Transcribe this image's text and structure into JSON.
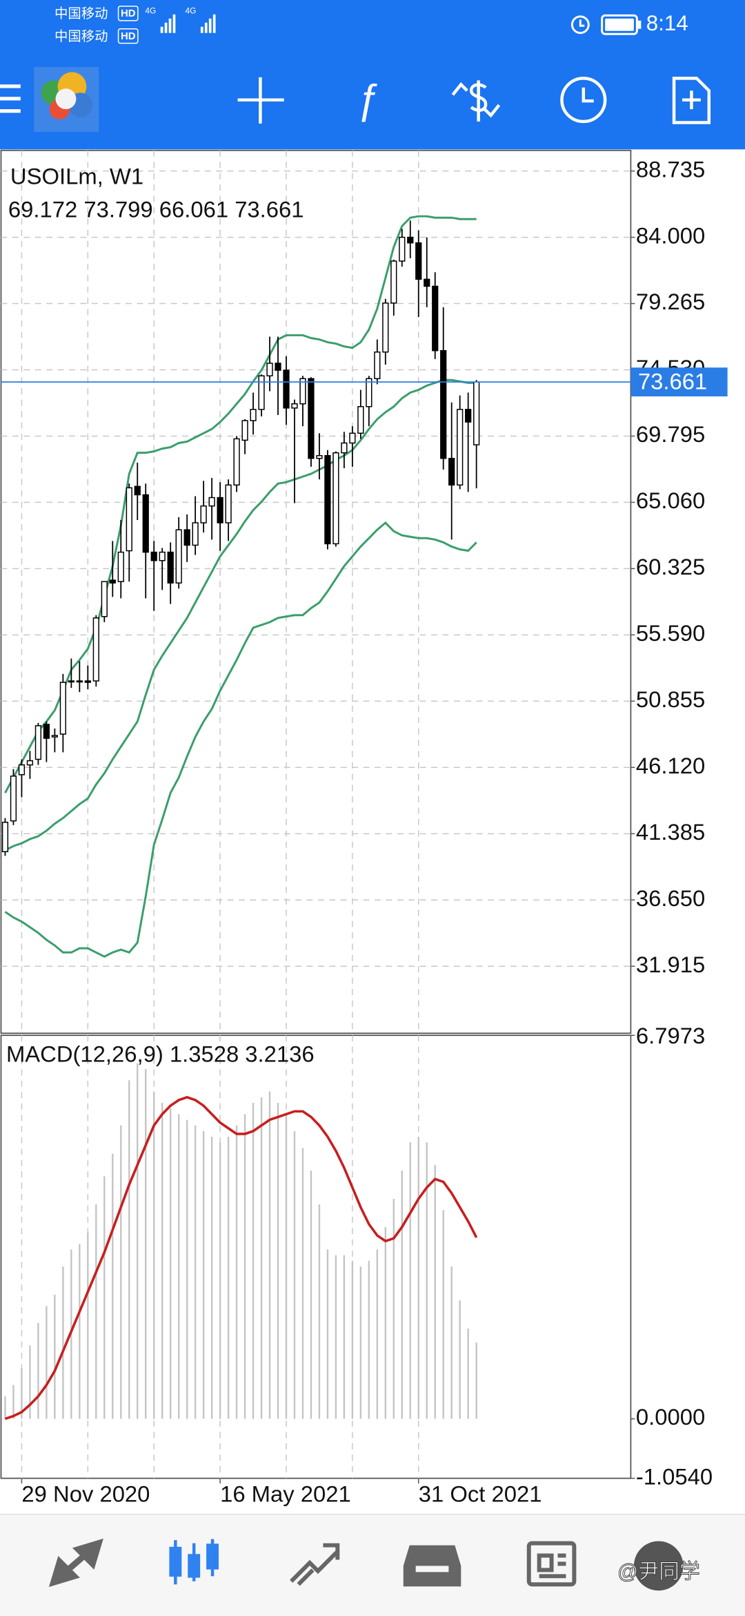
{
  "status_bar": {
    "sims": [
      {
        "carrier": "中国移动",
        "hd": "HD",
        "network": "4G"
      },
      {
        "carrier": "中国移动",
        "hd": "HD",
        "network": "4G"
      }
    ],
    "time": "8:14"
  },
  "chart": {
    "type": "candlestick",
    "symbol": "USOILm, W1",
    "ohlc_text": "69.172 73.799 66.061 73.661",
    "categories": [
      null,
      null,
      "29 Nov 2020",
      null,
      null,
      null,
      null,
      null,
      null,
      null,
      null,
      null,
      null,
      null,
      null,
      null,
      null,
      null,
      null,
      null,
      null,
      null,
      null,
      null,
      null,
      null,
      "16 May 2021",
      null,
      null,
      null,
      null,
      null,
      null,
      null,
      null,
      null,
      null,
      null,
      null,
      null,
      null,
      null,
      null,
      null,
      null,
      null,
      null,
      null,
      null,
      null,
      "31 Oct 2021",
      null,
      null,
      null,
      null,
      null,
      null,
      null
    ],
    "ylim": [
      27.125,
      90.207
    ],
    "yticks": [
      88.735,
      {
        "value": 84,
        "label": "84.000"
      },
      79.265,
      {
        "value": 74.53,
        "label": "74.530"
      },
      69.795,
      {
        "value": 65.06,
        "label": "65.060"
      },
      60.325,
      {
        "value": 55.59,
        "label": "55.590"
      },
      50.855,
      {
        "value": 46.12,
        "label": "46.120"
      },
      41.385,
      {
        "value": 36.65,
        "label": "36.650"
      },
      31.915
    ],
    "current_price": 73.661,
    "current_price_color": "#2b7de6",
    "grid": true,
    "candles": {
      "open": [
        40.1,
        42.3,
        45.6,
        46.3,
        46.7,
        49.2,
        48.3,
        48.5,
        52.3,
        52.3,
        52.3,
        52.3,
        56.9,
        59.5,
        59.4,
        61.6,
        66.2,
        65.6,
        61.5,
        60.9,
        61.5,
        59.3,
        63.1,
        62.0,
        63.6,
        64.8,
        65.4,
        63.6,
        66.3,
        69.5,
        70.9,
        71.7,
        74.1,
        75.0,
        74.5,
        71.8,
        72.1,
        73.9,
        68.2,
        68.4,
        62.1,
        68.6,
        69.3,
        70.0,
        71.9,
        73.9,
        75.8,
        79.3,
        82.3,
        84.0,
        83.6,
        81.0,
        80.5,
        75.9,
        68.2,
        66.3,
        71.7,
        69.172
      ],
      "high": [
        42.5,
        46.0,
        46.7,
        47.3,
        49.3,
        49.4,
        48.9,
        52.8,
        53.9,
        53.7,
        53.4,
        57.0,
        59.4,
        62.3,
        63.8,
        66.4,
        67.9,
        66.4,
        62.3,
        61.8,
        62.2,
        64.0,
        64.2,
        65.5,
        66.6,
        66.8,
        66.5,
        66.7,
        69.8,
        71.0,
        72.9,
        74.2,
        76.9,
        76.9,
        75.5,
        72.4,
        74.1,
        74.0,
        70.0,
        68.8,
        68.7,
        70.1,
        70.5,
        73.1,
        74.1,
        76.7,
        79.6,
        82.4,
        84.6,
        85.2,
        84.5,
        84.0,
        81.5,
        79.0,
        72.2,
        72.7,
        72.9,
        73.799
      ],
      "low": [
        39.8,
        42.0,
        44.0,
        45.3,
        46.3,
        46.5,
        47.2,
        47.2,
        51.8,
        51.5,
        51.7,
        51.9,
        56.5,
        58.3,
        58.2,
        59.4,
        63.8,
        58.2,
        57.3,
        58.8,
        57.8,
        58.9,
        60.8,
        61.3,
        62.9,
        62.4,
        61.6,
        62.3,
        65.8,
        68.5,
        69.9,
        71.2,
        73.0,
        71.3,
        70.6,
        65.0,
        70.5,
        67.6,
        66.7,
        61.7,
        61.9,
        67.5,
        67.6,
        69.6,
        70.5,
        73.5,
        74.9,
        78.4,
        81.9,
        82.5,
        78.3,
        79.0,
        75.3,
        67.4,
        62.4,
        66.0,
        65.8,
        66.061
      ],
      "close": [
        42.2,
        45.5,
        46.3,
        46.6,
        49.1,
        48.2,
        48.4,
        52.2,
        52.3,
        52.3,
        52.2,
        56.8,
        59.4,
        59.3,
        61.5,
        66.1,
        65.6,
        61.5,
        60.9,
        61.5,
        59.3,
        63.1,
        62.0,
        63.6,
        64.8,
        65.4,
        63.6,
        66.3,
        69.6,
        70.9,
        71.7,
        74.1,
        75.0,
        74.5,
        71.8,
        72.1,
        73.9,
        68.2,
        68.4,
        62.1,
        68.6,
        69.3,
        70.0,
        71.9,
        73.9,
        75.8,
        79.3,
        82.3,
        84.0,
        83.6,
        81.0,
        80.5,
        75.9,
        68.2,
        66.3,
        71.7,
        70.8,
        73.661
      ]
    },
    "bands": {
      "color": "#3a9e6a",
      "upper": [
        44.3,
        45.4,
        46.5,
        47.6,
        48.7,
        49.4,
        50.2,
        51.6,
        53.1,
        53.8,
        54.6,
        56.1,
        58.3,
        60.5,
        63.4,
        67.1,
        68.6,
        68.6,
        68.7,
        68.9,
        69.0,
        69.3,
        69.4,
        69.7,
        70.0,
        70.3,
        70.8,
        71.4,
        72.1,
        72.8,
        73.7,
        74.5,
        75.6,
        76.7,
        77.0,
        77.0,
        77.0,
        76.8,
        76.7,
        76.5,
        76.4,
        76.2,
        76.1,
        76.5,
        77.4,
        78.9,
        81.1,
        83.3,
        84.8,
        85.4,
        85.5,
        85.5,
        85.4,
        85.4,
        85.4,
        85.3,
        85.3,
        85.3
      ],
      "middle": [
        40.2,
        40.5,
        40.7,
        41.0,
        41.2,
        41.6,
        42.1,
        42.5,
        43.0,
        43.5,
        43.9,
        44.9,
        45.7,
        46.7,
        47.6,
        48.5,
        49.4,
        51.3,
        53.1,
        54.1,
        55.0,
        55.9,
        56.8,
        57.9,
        59.0,
        60.1,
        61.2,
        62.0,
        62.8,
        63.7,
        64.5,
        65.1,
        65.8,
        66.4,
        66.5,
        66.7,
        66.9,
        67.1,
        67.4,
        67.7,
        68.1,
        68.4,
        68.8,
        69.5,
        70.3,
        71.0,
        71.5,
        71.9,
        72.5,
        72.9,
        73.1,
        73.4,
        73.6,
        73.8,
        73.8,
        73.7,
        73.6,
        73.6
      ],
      "lower": [
        35.8,
        35.4,
        35.1,
        34.7,
        34.3,
        33.8,
        33.4,
        32.9,
        32.9,
        33.2,
        33.2,
        32.9,
        32.6,
        32.9,
        33.1,
        32.9,
        33.6,
        36.9,
        40.6,
        42.4,
        44.3,
        45.4,
        46.9,
        48.3,
        49.4,
        50.3,
        51.6,
        52.7,
        53.8,
        55.0,
        56.1,
        56.3,
        56.5,
        56.8,
        56.9,
        57.0,
        57.0,
        57.5,
        57.9,
        58.7,
        59.6,
        60.5,
        61.2,
        61.9,
        62.5,
        63.1,
        63.6,
        63.0,
        62.7,
        62.6,
        62.5,
        62.5,
        62.4,
        62.2,
        61.9,
        61.7,
        61.6,
        62.2
      ]
    }
  },
  "macd": {
    "label": "MACD(12,26,9) 1.3528 3.2136",
    "ylim": [
      -1.054,
      6.7973
    ],
    "yticks": [
      6.7973,
      {
        "value": 0,
        "label": "0.0000"
      },
      {
        "value": -1.054,
        "label": "-1.0540"
      }
    ],
    "histogram_color": "#c4c4c4",
    "signal_color": "#c81e1e",
    "histogram": [
      0.4,
      0.6,
      0.9,
      1.3,
      1.7,
      2.0,
      2.2,
      2.7,
      3.0,
      3.1,
      3.3,
      3.8,
      4.3,
      4.7,
      5.2,
      6.0,
      6.3,
      6.2,
      5.8,
      5.6,
      5.5,
      5.4,
      5.3,
      5.2,
      5.1,
      5.0,
      4.9,
      5.0,
      5.2,
      5.4,
      5.6,
      5.7,
      5.8,
      5.6,
      5.4,
      5.1,
      4.8,
      4.4,
      3.8,
      3.0,
      2.9,
      2.9,
      2.8,
      2.7,
      2.8,
      3.0,
      3.4,
      3.9,
      4.4,
      4.9,
      5.0,
      4.9,
      4.5,
      3.7,
      2.7,
      2.1,
      1.6,
      1.3528
    ],
    "signal": [
      0.0,
      0.05,
      0.12,
      0.25,
      0.4,
      0.6,
      0.85,
      1.2,
      1.55,
      1.9,
      2.25,
      2.6,
      2.95,
      3.35,
      3.75,
      4.15,
      4.5,
      4.85,
      5.2,
      5.4,
      5.55,
      5.65,
      5.7,
      5.65,
      5.55,
      5.4,
      5.25,
      5.15,
      5.05,
      5.05,
      5.1,
      5.2,
      5.3,
      5.35,
      5.4,
      5.45,
      5.45,
      5.35,
      5.2,
      5.0,
      4.75,
      4.45,
      4.1,
      3.75,
      3.45,
      3.25,
      3.15,
      3.2,
      3.4,
      3.65,
      3.9,
      4.1,
      4.25,
      4.2,
      4.0,
      3.75,
      3.5,
      3.2136
    ]
  },
  "watermark": "@尹同学"
}
